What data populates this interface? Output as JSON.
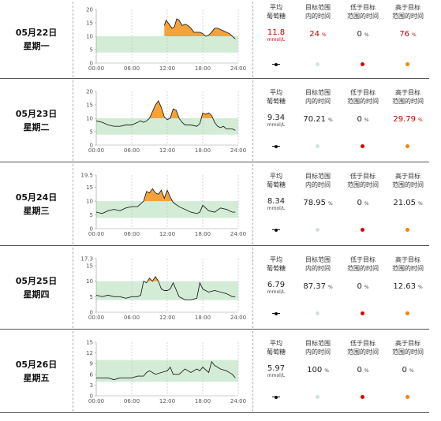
{
  "headers": {
    "avg": [
      "平均",
      "葡萄糖"
    ],
    "in": [
      "目标范围",
      "内的时间"
    ],
    "low": [
      "低于目标",
      "范围的时间"
    ],
    "high": [
      "高于目标",
      "范围的时间"
    ]
  },
  "unit_percent": "%",
  "unit_mmol": "mmol/L",
  "colors": {
    "target_band": "#d3ecd6",
    "above": "#f5a23a",
    "line": "#222222",
    "red": "#cc0000",
    "in_dot": "#cfe3de",
    "low_dot": "#e00000",
    "high_dot": "#f5820f",
    "avg_marker": "#111111"
  },
  "x_ticks": [
    "00:00",
    "06:00",
    "12:00",
    "18:00",
    "24:00"
  ],
  "days": [
    {
      "date": "05月22日",
      "weekday": "星期一",
      "avg": "11.8",
      "avg_red": true,
      "in": "24",
      "in_red": true,
      "low": "0",
      "high": "76",
      "high_red": true,
      "chart_data": {
        "type": "line",
        "ylim": [
          0,
          20
        ],
        "y_ticks": [
          "20",
          "15",
          "10",
          "5",
          "0"
        ],
        "target": [
          3.9,
          10
        ],
        "x": [
          11.5,
          11.8,
          12.3,
          12.8,
          13.2,
          13.6,
          14.0,
          14.5,
          15.0,
          15.5,
          16.0,
          16.5,
          17.0,
          17.5,
          18.0,
          18.5,
          19.0,
          19.5,
          20.0,
          20.5,
          21.0,
          21.5,
          22.0,
          22.5,
          23.0,
          23.5
        ],
        "y": [
          14,
          16,
          14.5,
          13,
          13.5,
          16.5,
          16,
          14,
          14.5,
          14,
          13,
          11.5,
          11.5,
          11.5,
          11,
          10,
          10.5,
          11.5,
          13,
          13,
          12.5,
          12,
          11.5,
          11,
          10,
          9
        ]
      }
    },
    {
      "date": "05月23日",
      "weekday": "星期二",
      "avg": "9.34",
      "in": "70.21",
      "low": "0",
      "high": "29.79",
      "high_red": true,
      "chart_data": {
        "type": "line",
        "ylim": [
          0,
          20
        ],
        "y_ticks": [
          "20",
          "15",
          "10",
          "5",
          "0"
        ],
        "target": [
          3.9,
          10
        ],
        "x": [
          0,
          1,
          2,
          3,
          4,
          5,
          6,
          6.5,
          7,
          7.5,
          8,
          8.5,
          9,
          9.5,
          10,
          10.5,
          11,
          11.5,
          12,
          12.5,
          13,
          13.5,
          14,
          14.5,
          15,
          16,
          17,
          17.5,
          18,
          18.5,
          19,
          19.5,
          20,
          20.5,
          21,
          21.5,
          22,
          22.5,
          23,
          23.5
        ],
        "y": [
          9,
          8.5,
          7.5,
          7,
          7,
          7.5,
          7.5,
          8,
          8.5,
          9,
          8.5,
          9,
          10,
          12.5,
          15,
          16.5,
          14,
          10.5,
          9.5,
          10,
          13.5,
          13,
          10,
          8.5,
          7.5,
          7.5,
          7,
          8,
          12,
          11.5,
          12,
          11,
          8.5,
          7,
          6.5,
          7,
          6,
          6,
          6,
          5.5
        ]
      }
    },
    {
      "date": "05月24日",
      "weekday": "星期三",
      "avg": "8.34",
      "in": "78.95",
      "low": "0",
      "high": "21.05",
      "chart_data": {
        "type": "line",
        "ylim": [
          0,
          19.5
        ],
        "y_ticks": [
          "19.5",
          "15",
          "10",
          "5",
          "0"
        ],
        "target": [
          3.9,
          10
        ],
        "x": [
          0,
          1,
          2,
          3,
          4,
          5,
          6,
          7,
          8,
          8.5,
          9,
          9.5,
          10,
          10.5,
          11,
          11.5,
          12,
          12.5,
          13,
          14,
          15,
          16,
          17,
          17.5,
          18,
          19,
          20,
          21,
          22,
          23,
          23.5
        ],
        "y": [
          6,
          5.5,
          6.5,
          7,
          6.5,
          7.5,
          8,
          8,
          10,
          13.5,
          13,
          14.5,
          13,
          12.5,
          14,
          11,
          14,
          11.5,
          9.5,
          8,
          7,
          6,
          5.5,
          6,
          8.5,
          6.5,
          6,
          7.5,
          7,
          6,
          6
        ]
      }
    },
    {
      "date": "05月25日",
      "weekday": "星期四",
      "avg": "6.79",
      "in": "87.37",
      "low": "0",
      "high": "12.63",
      "chart_data": {
        "type": "line",
        "ylim": [
          0,
          17.3
        ],
        "y_ticks": [
          "17.3",
          "15",
          "10",
          "5",
          "0"
        ],
        "target": [
          3.9,
          10
        ],
        "x": [
          0,
          1,
          2,
          3,
          4,
          5,
          6,
          7,
          7.5,
          8,
          8.5,
          9,
          9.5,
          10,
          10.5,
          11,
          11.5,
          12,
          12.5,
          13,
          14,
          15,
          16,
          17,
          17.5,
          18,
          19,
          20,
          21,
          22,
          23,
          23.5
        ],
        "y": [
          5.5,
          5,
          5.5,
          5,
          5,
          4.5,
          5,
          5,
          5.5,
          10,
          9.5,
          11,
          10,
          11.5,
          10,
          7.5,
          7,
          7,
          7.5,
          9.5,
          5,
          4,
          4,
          4.5,
          9.5,
          7.5,
          6.5,
          7,
          6.5,
          6,
          5,
          5
        ]
      }
    },
    {
      "date": "05月26日",
      "weekday": "星期五",
      "avg": "5.97",
      "in": "100",
      "low": "0",
      "high": "0",
      "chart_data": {
        "type": "line",
        "ylim": [
          0,
          15
        ],
        "y_ticks": [
          "15",
          "12",
          "9",
          "6",
          "3",
          "0"
        ],
        "target": [
          3.9,
          10
        ],
        "x": [
          0,
          1,
          2,
          3,
          4,
          5,
          6,
          7,
          8,
          8.5,
          9,
          10,
          11,
          12,
          12.5,
          13,
          14,
          15,
          16,
          17,
          17.5,
          18,
          19,
          19.5,
          20,
          21,
          22,
          23,
          23.5
        ],
        "y": [
          5,
          5,
          5,
          4.5,
          5,
          5,
          5,
          5.5,
          5.5,
          6.5,
          7,
          6,
          6.5,
          7,
          8,
          6,
          6,
          7.5,
          6.5,
          7.5,
          7,
          8,
          6.5,
          9.5,
          8.5,
          7.5,
          7,
          6,
          5
        ]
      }
    }
  ]
}
